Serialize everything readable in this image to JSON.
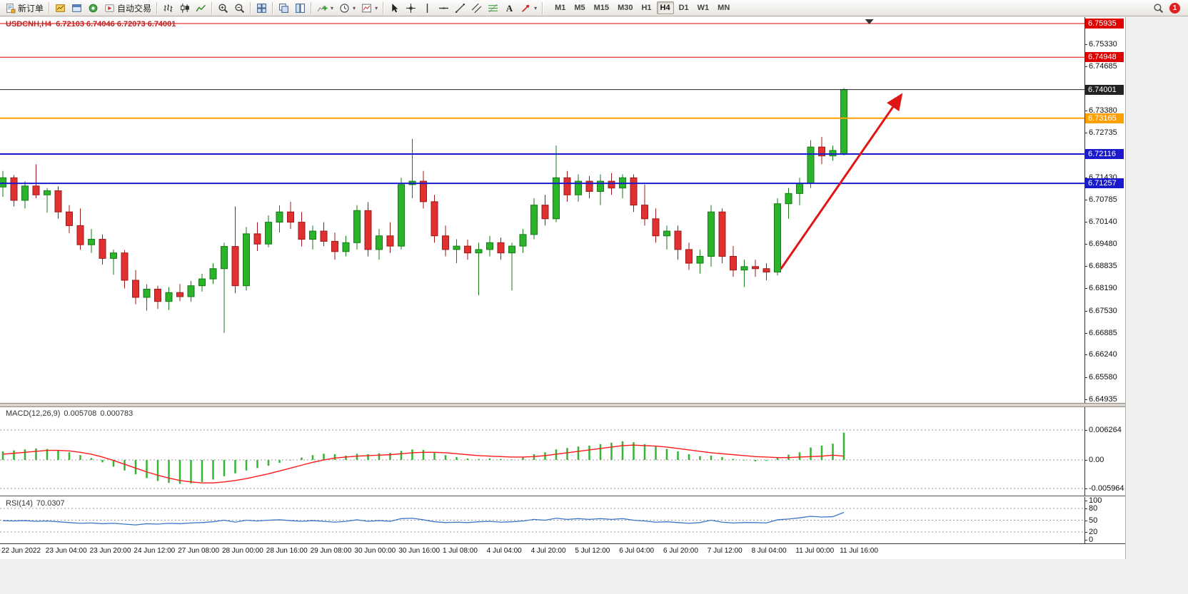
{
  "toolbar": {
    "items": [
      {
        "name": "new-order",
        "icon": "new-order",
        "label": "新订单"
      },
      {
        "sep": true
      },
      {
        "name": "charts",
        "icon": "chart-gold"
      },
      {
        "name": "profiles",
        "icon": "profiles"
      },
      {
        "name": "refresh",
        "icon": "green-circle"
      },
      {
        "name": "auto-trading",
        "icon": "autotrading",
        "label": "自动交易"
      },
      {
        "sep": true
      },
      {
        "name": "bar-chart-mode",
        "icon": "bars-chart"
      },
      {
        "name": "candlestick-mode",
        "icon": "candles-chart"
      },
      {
        "name": "line-chart-mode",
        "icon": "line-chart"
      },
      {
        "sep": true
      },
      {
        "name": "zoom-in",
        "icon": "zoom-in"
      },
      {
        "name": "zoom-out",
        "icon": "zoom-out"
      },
      {
        "sep": true
      },
      {
        "name": "tile-windows",
        "icon": "tile-windows"
      },
      {
        "sep": true
      },
      {
        "name": "cascade-windows",
        "icon": "arrange-h"
      },
      {
        "name": "tile-vertical",
        "icon": "arrange-v"
      },
      {
        "sep": true
      },
      {
        "name": "indicators",
        "icon": "indicators",
        "dropdown": true
      },
      {
        "name": "periods",
        "icon": "clock",
        "dropdown": true
      },
      {
        "name": "templates",
        "icon": "template",
        "dropdown": true
      },
      {
        "sep": true
      },
      {
        "name": "cursor",
        "icon": "cursor"
      },
      {
        "name": "crosshair",
        "icon": "crosshair"
      },
      {
        "name": "vertical-line",
        "icon": "vline"
      },
      {
        "name": "horizontal-line",
        "icon": "hline"
      },
      {
        "name": "trendline",
        "icon": "trendline"
      },
      {
        "name": "equidistant-channel",
        "icon": "channel"
      },
      {
        "name": "fibonacci",
        "icon": "fibo"
      },
      {
        "name": "text-label",
        "icon": "text"
      },
      {
        "name": "arrows",
        "icon": "shapes",
        "dropdown": true
      },
      {
        "sep": true
      }
    ],
    "timeframes": [
      "M1",
      "M5",
      "M15",
      "M30",
      "H1",
      "H4",
      "D1",
      "W1",
      "MN"
    ],
    "active_timeframe": "H4",
    "notification_count": "1"
  },
  "chart": {
    "symbol_period": "USDCNH,H4",
    "ohlc_text": "6.72103 6.74046 6.72073 6.74001"
  },
  "indicators": {
    "macd": {
      "name": "MACD(12,26,9)",
      "main": "0.005708",
      "signal": "0.000783"
    },
    "rsi": {
      "name": "RSI(14)",
      "value": "70.0307"
    }
  },
  "chart_data": {
    "type": "candlestick",
    "symbol": "USDCNH",
    "timeframe": "H4",
    "price_ylim": [
      6.64935,
      6.75935
    ],
    "price_axis_ticks": [
      "6.75330",
      "6.74685",
      "6.73380",
      "6.72735",
      "6.71430",
      "6.70785",
      "6.70140",
      "6.69480",
      "6.68835",
      "6.68190",
      "6.67530",
      "6.66885",
      "6.66240",
      "6.65580",
      "6.64935"
    ],
    "hlines": [
      {
        "label": "6.75935",
        "value": 6.75935,
        "color": "#e00000",
        "width": 1
      },
      {
        "label": "6.74948",
        "value": 6.74948,
        "color": "#e00000",
        "width": 1
      },
      {
        "label": "6.74001",
        "value": 6.74001,
        "color": "#222222",
        "width": 1
      },
      {
        "label": "6.73165",
        "value": 6.73165,
        "color": "#ffa000",
        "width": 2
      },
      {
        "label": "6.72116",
        "value": 6.72116,
        "color": "#1a1acd",
        "width": 2
      },
      {
        "label": "6.71257",
        "value": 6.71257,
        "color": "#1a1acd",
        "width": 2
      }
    ],
    "arrow": {
      "from": {
        "bar": 70.3,
        "price": 6.6875
      },
      "to": {
        "bar": 81.2,
        "price": 6.7385
      },
      "color": "#e01515"
    },
    "shift_marker_bar": 78.3,
    "candles": [
      [
        6.7115,
        6.7162,
        6.7086,
        6.7142
      ],
      [
        6.7142,
        6.715,
        6.7058,
        6.7076
      ],
      [
        6.7076,
        6.7132,
        6.7052,
        6.7118
      ],
      [
        6.7118,
        6.7181,
        6.7082,
        6.7092
      ],
      [
        6.7092,
        6.7112,
        6.704,
        6.7104
      ],
      [
        6.7104,
        6.7117,
        6.7022,
        6.7042
      ],
      [
        6.7042,
        6.7062,
        6.698,
        6.7002
      ],
      [
        6.7002,
        6.7052,
        6.6931,
        6.6946
      ],
      [
        6.6946,
        6.6992,
        6.6922,
        6.6962
      ],
      [
        6.6962,
        6.6976,
        6.6888,
        6.6906
      ],
      [
        6.6906,
        6.6932,
        6.6858,
        6.6922
      ],
      [
        6.6922,
        6.693,
        6.6818,
        6.6842
      ],
      [
        6.6842,
        6.6872,
        6.6772,
        6.6792
      ],
      [
        6.6792,
        6.683,
        6.6753,
        6.6816
      ],
      [
        6.6816,
        6.6826,
        6.6758,
        6.678
      ],
      [
        6.678,
        6.6822,
        6.6755,
        6.6806
      ],
      [
        6.6806,
        6.6831,
        6.6781,
        6.6794
      ],
      [
        6.6794,
        6.684,
        6.6779,
        6.6826
      ],
      [
        6.6826,
        6.6861,
        6.6809,
        6.6846
      ],
      [
        6.6846,
        6.6892,
        6.6831,
        6.6876
      ],
      [
        6.6876,
        6.6952,
        6.6688,
        6.6941
      ],
      [
        6.6941,
        6.7058,
        6.6804,
        6.6826
      ],
      [
        6.6826,
        6.6998,
        6.6812,
        6.6978
      ],
      [
        6.6978,
        6.7012,
        6.6928,
        6.6948
      ],
      [
        6.6948,
        6.7032,
        6.6938,
        6.7012
      ],
      [
        6.7012,
        6.7061,
        6.6982,
        6.7042
      ],
      [
        6.7042,
        6.7072,
        6.6992,
        6.7012
      ],
      [
        6.7012,
        6.7042,
        6.6941,
        6.6962
      ],
      [
        6.6962,
        6.7002,
        6.6932,
        6.6986
      ],
      [
        6.6986,
        6.7012,
        6.6942,
        6.6956
      ],
      [
        6.6956,
        6.6982,
        6.6902,
        6.6926
      ],
      [
        6.6926,
        6.6972,
        6.6912,
        6.6952
      ],
      [
        6.6952,
        6.7062,
        6.6932,
        6.7046
      ],
      [
        6.7046,
        6.7071,
        6.6912,
        6.6932
      ],
      [
        6.6932,
        6.6992,
        6.6902,
        6.6972
      ],
      [
        6.6972,
        6.7012,
        6.6922,
        6.6942
      ],
      [
        6.6942,
        6.7142,
        6.6932,
        6.7122
      ],
      [
        6.7122,
        6.7256,
        6.7082,
        6.7132
      ],
      [
        6.7132,
        6.7162,
        6.7052,
        6.7072
      ],
      [
        6.7072,
        6.7092,
        6.6952,
        6.6972
      ],
      [
        6.6972,
        6.7002,
        6.6912,
        6.6932
      ],
      [
        6.6932,
        6.6962,
        6.6892,
        6.6942
      ],
      [
        6.6942,
        6.6961,
        6.6902,
        6.6922
      ],
      [
        6.6922,
        6.6952,
        6.6798,
        6.6932
      ],
      [
        6.6932,
        6.6972,
        6.6912,
        6.6952
      ],
      [
        6.6952,
        6.6967,
        6.6902,
        6.6922
      ],
      [
        6.6922,
        6.6952,
        6.6812,
        6.6942
      ],
      [
        6.6942,
        6.6992,
        6.6922,
        6.6976
      ],
      [
        6.6976,
        6.7082,
        6.6962,
        6.7062
      ],
      [
        6.7062,
        6.7092,
        6.7002,
        6.7022
      ],
      [
        6.7022,
        6.7236,
        6.7012,
        6.7142
      ],
      [
        6.7142,
        6.7162,
        6.7072,
        6.7092
      ],
      [
        6.7092,
        6.7152,
        6.7072,
        6.7132
      ],
      [
        6.7132,
        6.7147,
        6.7082,
        6.7102
      ],
      [
        6.7102,
        6.7152,
        6.7062,
        6.7132
      ],
      [
        6.7132,
        6.7156,
        6.7092,
        6.7112
      ],
      [
        6.7112,
        6.7152,
        6.7082,
        6.7142
      ],
      [
        6.7142,
        6.7152,
        6.7042,
        6.7062
      ],
      [
        6.7062,
        6.7122,
        6.7002,
        6.7022
      ],
      [
        6.7022,
        6.7052,
        6.6952,
        6.6972
      ],
      [
        6.6972,
        6.7002,
        6.6932,
        6.6986
      ],
      [
        6.6986,
        6.7002,
        6.6902,
        6.6932
      ],
      [
        6.6932,
        6.6952,
        6.6872,
        6.6892
      ],
      [
        6.6892,
        6.6932,
        6.6862,
        6.6912
      ],
      [
        6.6912,
        6.7062,
        6.6882,
        6.7042
      ],
      [
        6.7042,
        6.7052,
        6.6892,
        6.6912
      ],
      [
        6.6912,
        6.6942,
        6.6852,
        6.6872
      ],
      [
        6.6872,
        6.6902,
        6.6822,
        6.6882
      ],
      [
        6.6882,
        6.6902,
        6.6852,
        6.6876
      ],
      [
        6.6876,
        6.6892,
        6.6842,
        6.6866
      ],
      [
        6.6866,
        6.7082,
        6.6856,
        6.7066
      ],
      [
        6.7066,
        6.7112,
        6.7022,
        6.7096
      ],
      [
        6.7096,
        6.7142,
        6.7062,
        6.7126
      ],
      [
        6.7126,
        6.7252,
        6.7112,
        6.7232
      ],
      [
        6.7232,
        6.7262,
        6.7182,
        6.7206
      ],
      [
        6.7206,
        6.7236,
        6.7192,
        6.7222
      ],
      [
        6.72103,
        6.74046,
        6.72073,
        6.74001
      ]
    ],
    "time_labels": [
      "22 Jun 2022",
      "23 Jun 04:00",
      "23 Jun 20:00",
      "24 Jun 12:00",
      "27 Jun 08:00",
      "28 Jun 00:00",
      "28 Jun 16:00",
      "29 Jun 08:00",
      "30 Jun 00:00",
      "30 Jun 16:00",
      "1 Jul 08:00",
      "4 Jul 04:00",
      "4 Jul 20:00",
      "5 Jul 12:00",
      "6 Jul 04:00",
      "6 Jul 20:00",
      "7 Jul 12:00",
      "8 Jul 04:00",
      "11 Jul 00:00",
      "11 Jul 16:00"
    ],
    "macd": {
      "title": "MACD(12,26,9)",
      "ylim": [
        -0.005964,
        0.006264
      ],
      "axis_ticks": [
        "0.006264",
        "0.00",
        "-0.005964"
      ],
      "levels": [
        0.006264,
        0,
        -0.005964
      ],
      "histogram": [
        0.0018,
        0.002,
        0.0022,
        0.0024,
        0.0023,
        0.002,
        0.0016,
        0.001,
        0.0004,
        -0.0005,
        -0.0014,
        -0.0022,
        -0.003,
        -0.0038,
        -0.0044,
        -0.0048,
        -0.005,
        -0.0049,
        -0.0046,
        -0.0041,
        -0.0034,
        -0.0028,
        -0.0022,
        -0.0017,
        -0.0012,
        -0.0006,
        -0.0001,
        0.0005,
        0.001,
        0.0013,
        0.0012,
        0.0009,
        0.0013,
        0.0012,
        0.0014,
        0.0015,
        0.0019,
        0.0022,
        0.0021,
        0.0016,
        0.001,
        0.0006,
        0.0003,
        0.0002,
        0.0003,
        0.0002,
        0.0001,
        0.0005,
        0.0012,
        0.0016,
        0.0022,
        0.0025,
        0.0028,
        0.003,
        0.0033,
        0.0036,
        0.0039,
        0.0037,
        0.0033,
        0.0028,
        0.0023,
        0.0018,
        0.0012,
        0.0008,
        0.0009,
        0.0006,
        0.0002,
        -0.0001,
        -0.0003,
        -0.0002,
        0.0006,
        0.0011,
        0.0016,
        0.0026,
        0.003,
        0.0034,
        0.0057
      ],
      "signal": [
        0.0012,
        0.0014,
        0.0016,
        0.0018,
        0.002,
        0.002,
        0.0019,
        0.0016,
        0.0012,
        0.0006,
        -0.0001,
        -0.0009,
        -0.0017,
        -0.0025,
        -0.0032,
        -0.0038,
        -0.0043,
        -0.0046,
        -0.0048,
        -0.0048,
        -0.0046,
        -0.0043,
        -0.0039,
        -0.0034,
        -0.0029,
        -0.0023,
        -0.0017,
        -0.0011,
        -0.0005,
        0.0,
        0.0004,
        0.0006,
        0.0008,
        0.0009,
        0.001,
        0.0011,
        0.0013,
        0.0015,
        0.0016,
        0.0016,
        0.0015,
        0.0013,
        0.0011,
        0.0009,
        0.0008,
        0.0007,
        0.0006,
        0.0006,
        0.0007,
        0.0009,
        0.0012,
        0.0015,
        0.0018,
        0.0021,
        0.0024,
        0.0027,
        0.003,
        0.0031,
        0.003,
        0.0029,
        0.0027,
        0.0024,
        0.0021,
        0.0018,
        0.0015,
        0.0013,
        0.0011,
        0.0009,
        0.0007,
        0.0006,
        0.0005,
        0.0005,
        0.0006,
        0.0007,
        0.0008,
        0.001,
        0.0008
      ]
    },
    "rsi": {
      "title": "RSI(14)",
      "ylim": [
        0,
        100
      ],
      "axis_ticks": [
        "100",
        "80",
        "50",
        "20",
        "0"
      ],
      "levels": [
        80,
        50,
        20
      ],
      "values": [
        49,
        48,
        49,
        47,
        48,
        46,
        44,
        42,
        43,
        41,
        42,
        40,
        38,
        41,
        40,
        42,
        41,
        43,
        44,
        46,
        50,
        45,
        50,
        48,
        50,
        51,
        49,
        47,
        49,
        47,
        45,
        47,
        51,
        47,
        49,
        47,
        54,
        55,
        51,
        46,
        44,
        45,
        44,
        46,
        47,
        45,
        46,
        48,
        52,
        50,
        55,
        52,
        54,
        52,
        54,
        52,
        54,
        50,
        48,
        45,
        46,
        44,
        42,
        44,
        50,
        45,
        43,
        44,
        44,
        43,
        51,
        53,
        56,
        60,
        58,
        59,
        70
      ]
    },
    "colors": {
      "bull": "#2bb32b",
      "bull_edge": "#157a15",
      "bear": "#e03030",
      "bear_edge": "#9c1a1a",
      "macd_hist": "#33b533",
      "macd_signal": "#ff1a1a",
      "rsi_line": "#3d76c8"
    }
  }
}
